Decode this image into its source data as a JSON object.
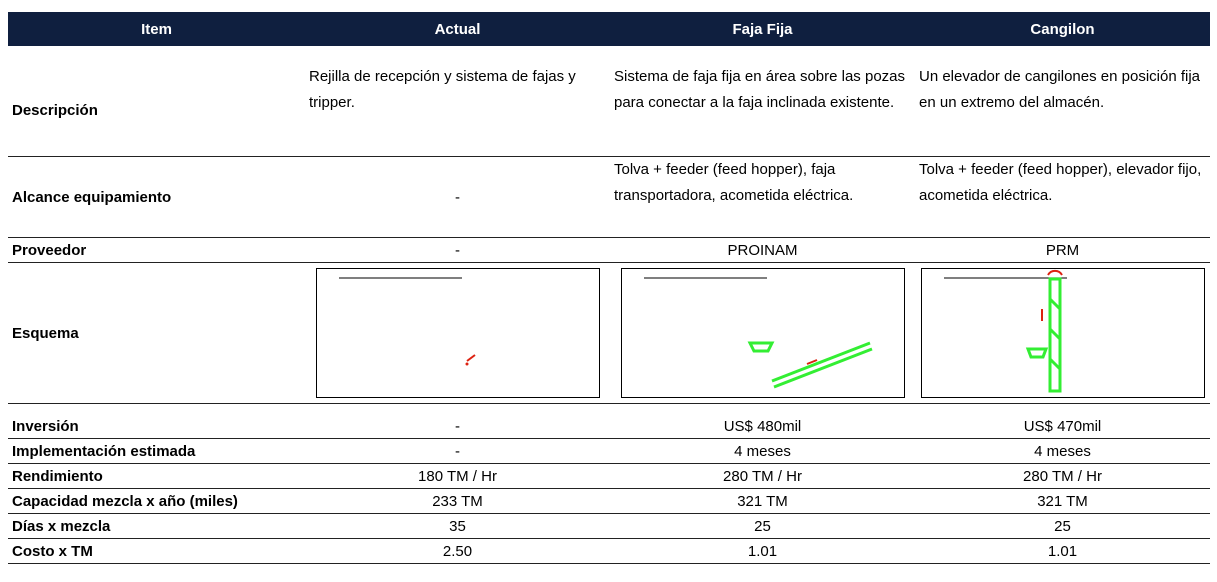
{
  "table": {
    "header": [
      "Item",
      "Actual",
      "Faja Fija",
      "Cangilon"
    ],
    "rows": [
      [
        "Descripción",
        "Rejilla de recepción y sistema de fajas y tripper.",
        "Sistema de faja fija en área sobre las pozas para conectar a la faja inclinada existente.",
        "Un elevador de cangilones en posición fija en un extremo del almacén."
      ],
      [
        "Alcance equipamiento",
        "-",
        "Tolva + feeder (feed hopper), faja transportadora, acometida eléctrica.",
        "Tolva + feeder (feed hopper), elevador fijo, acometida eléctrica."
      ],
      [
        "Proveedor",
        "-",
        "PROINAM",
        "PRM"
      ],
      [
        "Esquema"
      ],
      [
        "Inversión",
        "-",
        "US$ 480mil",
        "US$ 470mil"
      ],
      [
        "Implementación estimada",
        "-",
        "4 meses",
        "4 meses"
      ],
      [
        "Rendimiento",
        "180 TM / Hr",
        "280 TM / Hr",
        "280 TM / Hr"
      ],
      [
        "Capacidad mezcla x año (miles)",
        "233  TM",
        "321 TM",
        "321 TM"
      ],
      [
        "Días x mezcla",
        "35",
        "25",
        "25"
      ],
      [
        "Costo x TM",
        "2.50",
        "1.01",
        "1.01"
      ]
    ]
  }
}
